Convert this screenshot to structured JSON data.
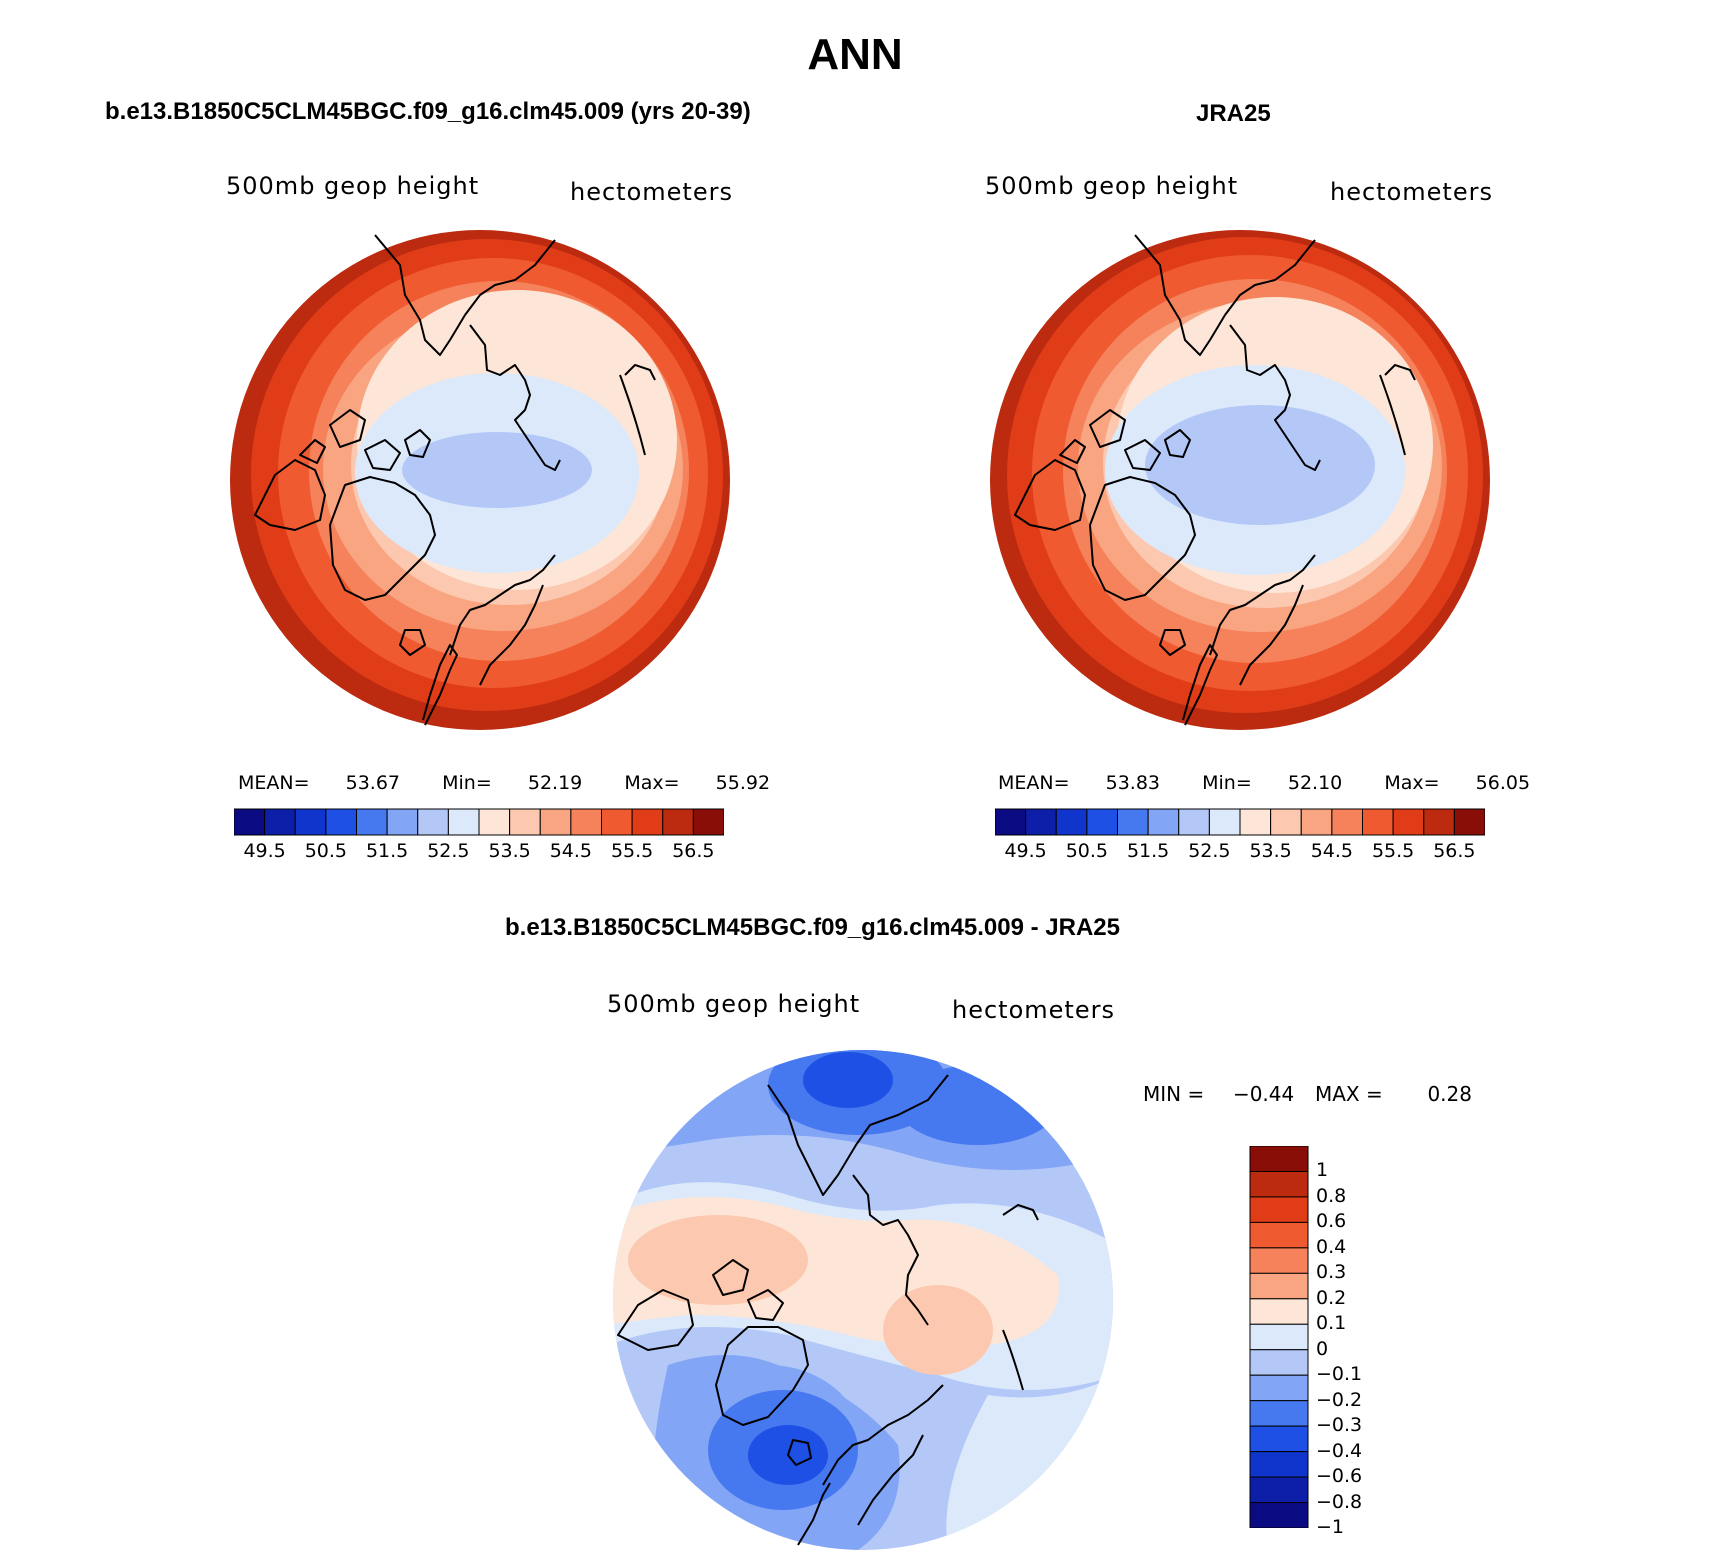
{
  "figure": {
    "title": "ANN"
  },
  "panel_model": {
    "title": "b.e13.B1850C5CLM45BGC.f09_g16.clm45.009 (yrs 20-39)",
    "variable_label": "500mb geop height",
    "units_label": "hectometers",
    "stats": {
      "mean_label": "MEAN=",
      "mean": "53.67",
      "min_label": "Min=",
      "min": "52.19",
      "max_label": "Max=",
      "max": "55.92"
    }
  },
  "panel_obs": {
    "title": "JRA25",
    "variable_label": "500mb geop height",
    "units_label": "hectometers",
    "stats": {
      "mean_label": "MEAN=",
      "mean": "53.83",
      "min_label": "Min=",
      "min": "52.10",
      "max_label": "Max=",
      "max": "56.05"
    }
  },
  "panel_diff": {
    "title": "b.e13.B1850C5CLM45BGC.f09_g16.clm45.009 - JRA25",
    "variable_label": "500mb geop height",
    "units_label": "hectometers",
    "stats": {
      "min_label": "MIN =",
      "min": "−0.44",
      "max_label": "MAX =",
      "max": "0.28"
    }
  },
  "colorbar_abs": {
    "colors": [
      "#0a0a82",
      "#0d1fa8",
      "#1035cc",
      "#1e50e6",
      "#4678f0",
      "#82a5f5",
      "#b4c8f8",
      "#dce9fb",
      "#fde6d7",
      "#fcc8b0",
      "#f9a582",
      "#f5825a",
      "#ef5a30",
      "#e13c18",
      "#bc2a10",
      "#8a0e08"
    ],
    "ticks": [
      "49.5",
      "50.5",
      "51.5",
      "52.5",
      "53.5",
      "54.5",
      "55.5",
      "56.5"
    ]
  },
  "colorbar_diff": {
    "colors": [
      "#8a0e08",
      "#bc2a10",
      "#e13c18",
      "#ef5a30",
      "#f5825a",
      "#f9a582",
      "#fde6d7",
      "#dce9fb",
      "#b4c8f8",
      "#82a5f5",
      "#4678f0",
      "#1e50e6",
      "#1035cc",
      "#0d1fa8",
      "#0a0a82"
    ],
    "ticks": [
      "1",
      "0.8",
      "0.6",
      "0.4",
      "0.3",
      "0.2",
      "0.1",
      "0",
      "−0.1",
      "−0.2",
      "−0.3",
      "−0.4",
      "−0.6",
      "−0.8",
      "−1"
    ]
  }
}
